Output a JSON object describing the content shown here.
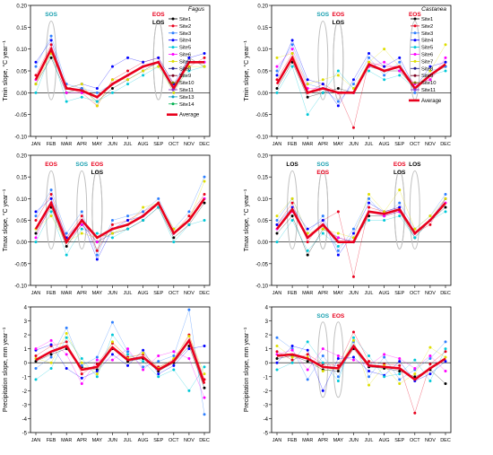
{
  "months": [
    "JAN",
    "FEB",
    "MAR",
    "APR",
    "MAY",
    "JUN",
    "JUL",
    "AUG",
    "SEP",
    "OCT",
    "NOV",
    "DEC"
  ],
  "legend_fagus": {
    "title": "Fagus",
    "sites": [
      "Site1",
      "Site2",
      "Site3",
      "Site4",
      "Site5",
      "Site6",
      "Site7",
      "Site8",
      "Site9",
      "Site10",
      "Site11",
      "Site13",
      "Site14"
    ],
    "average_label": "Average"
  },
  "legend_castanea": {
    "title": "Castanea",
    "sites": [
      "Site1",
      "Site2",
      "Site3",
      "Site4",
      "Site5",
      "Site6",
      "Site7",
      "Site8",
      "Site9",
      "Site10",
      "Site11"
    ],
    "average_label": "Average"
  },
  "colors": {
    "average": "#e8001c",
    "sites": [
      "#000000",
      "#e8001c",
      "#2e7fff",
      "#0000ff",
      "#00c8d8",
      "#ff00ff",
      "#dede00",
      "#1a1a8a",
      "#7a0020",
      "#7a7a00",
      "#8b2bc8",
      "#0aa0c0",
      "#00b050",
      "#8a2be2"
    ],
    "ellipse": "#c0c0c0",
    "sos": "#1aa0b0",
    "eos": "#e8001c",
    "los": "#000000"
  },
  "chart_data": [
    {
      "type": "line",
      "panel": "tmin-fagus",
      "ylabel": "Tmin slope, °C year⁻¹",
      "ylim": [
        -0.1,
        0.2
      ],
      "yticks": [
        "-0.10",
        "-0.05",
        "0.00",
        "0.05",
        "0.10",
        "0.15",
        "0.20"
      ],
      "annotations": [
        {
          "text": "SOS",
          "month": 2,
          "kind": "sos"
        },
        {
          "text": "EOS",
          "month": 9,
          "kind": "eos"
        },
        {
          "text": "LOS",
          "month": 9,
          "kind": "los"
        }
      ],
      "average": [
        0.03,
        0.1,
        0.01,
        0.005,
        -0.01,
        0.02,
        0.04,
        0.06,
        0.07,
        0.01,
        0.07,
        0.07
      ],
      "series": [
        {
          "name": "Site1",
          "values": [
            0.02,
            0.08,
            0.0,
            0.01,
            -0.02,
            0.01,
            0.03,
            0.05,
            0.07,
            0.01,
            0.08,
            0.06
          ]
        },
        {
          "name": "Site2",
          "values": [
            0.04,
            0.11,
            0.01,
            0.0,
            -0.03,
            0.03,
            0.05,
            0.07,
            0.08,
            0.02,
            0.06,
            0.08
          ]
        },
        {
          "name": "Site3",
          "values": [
            0.06,
            0.13,
            0.02,
            0.01,
            0.0,
            0.02,
            0.04,
            0.06,
            0.07,
            0.0,
            0.07,
            0.07
          ]
        },
        {
          "name": "Site4",
          "values": [
            0.07,
            0.12,
            0.01,
            0.02,
            0.01,
            0.06,
            0.08,
            0.07,
            0.08,
            0.02,
            0.08,
            0.09
          ]
        },
        {
          "name": "Site5",
          "values": [
            0.0,
            0.09,
            -0.02,
            -0.01,
            -0.02,
            0.0,
            0.02,
            0.04,
            0.06,
            0.01,
            0.05,
            0.06
          ]
        },
        {
          "name": "Site6",
          "values": [
            0.03,
            0.1,
            0.0,
            0.0,
            -0.01,
            0.02,
            0.04,
            0.06,
            0.07,
            0.01,
            0.07,
            0.07
          ]
        },
        {
          "name": "Site7",
          "values": [
            0.02,
            0.09,
            0.01,
            0.02,
            -0.03,
            0.03,
            0.03,
            0.05,
            0.06,
            0.0,
            0.06,
            0.06
          ]
        }
      ]
    },
    {
      "type": "line",
      "panel": "tmin-castanea",
      "ylabel": "Tmin slope, °C year⁻¹",
      "ylim": [
        -0.1,
        0.2
      ],
      "yticks": [
        "-0.10",
        "-0.05",
        "0.00",
        "0.05",
        "0.10",
        "0.15",
        "0.20"
      ],
      "annotations": [
        {
          "text": "SOS",
          "month": 4,
          "kind": "sos"
        },
        {
          "text": "EOS",
          "month": 5,
          "kind": "eos"
        },
        {
          "text": "LOS",
          "month": 5,
          "kind": "los"
        },
        {
          "text": "EOS",
          "month": 10,
          "kind": "eos"
        }
      ],
      "average": [
        0.02,
        0.08,
        0.0,
        0.01,
        0.0,
        0.0,
        0.065,
        0.05,
        0.06,
        0.01,
        0.04,
        0.065
      ],
      "series": [
        {
          "name": "Site1",
          "values": [
            0.01,
            0.07,
            -0.01,
            0.0,
            0.01,
            0.0,
            0.06,
            0.05,
            0.05,
            0.01,
            0.04,
            0.06
          ]
        },
        {
          "name": "Site2",
          "values": [
            0.03,
            0.09,
            0.0,
            0.02,
            0.0,
            -0.08,
            0.07,
            0.06,
            0.06,
            0.02,
            0.03,
            0.07
          ]
        },
        {
          "name": "Site3",
          "values": [
            0.05,
            0.11,
            0.02,
            0.01,
            -0.02,
            0.02,
            0.08,
            0.04,
            0.07,
            0.0,
            0.05,
            0.06
          ]
        },
        {
          "name": "Site4",
          "values": [
            0.04,
            0.12,
            0.03,
            0.02,
            -0.03,
            0.03,
            0.09,
            0.06,
            0.08,
            0.01,
            0.06,
            0.07
          ]
        },
        {
          "name": "Site5",
          "values": [
            0.0,
            0.06,
            -0.05,
            0.0,
            0.05,
            0.01,
            0.05,
            0.03,
            0.04,
            0.01,
            0.04,
            0.05
          ]
        },
        {
          "name": "Site6",
          "values": [
            0.06,
            0.1,
            0.01,
            0.01,
            0.0,
            0.0,
            0.06,
            0.07,
            0.05,
            0.02,
            0.03,
            0.08
          ]
        },
        {
          "name": "Site7",
          "values": [
            0.08,
            0.09,
            0.02,
            0.03,
            0.04,
            0.01,
            0.07,
            0.1,
            0.06,
            0.01,
            0.05,
            0.11
          ]
        }
      ]
    },
    {
      "type": "line",
      "panel": "tmax-fagus",
      "ylabel": "Tmax slope, °C year⁻¹",
      "ylim": [
        -0.1,
        0.2
      ],
      "yticks": [
        "-0.10",
        "-0.05",
        "0.00",
        "0.05",
        "0.10",
        "0.15",
        "0.20"
      ],
      "annotations": [
        {
          "text": "EOS",
          "month": 2,
          "kind": "eos"
        },
        {
          "text": "SOS",
          "month": 4,
          "kind": "sos"
        },
        {
          "text": "EOS",
          "month": 5,
          "kind": "eos"
        },
        {
          "text": "LOS",
          "month": 5,
          "kind": "los"
        }
      ],
      "average": [
        0.03,
        0.09,
        0.0,
        0.05,
        0.01,
        0.03,
        0.04,
        0.06,
        0.09,
        0.02,
        0.05,
        0.1
      ],
      "series": [
        {
          "name": "Site1",
          "values": [
            0.02,
            0.08,
            -0.01,
            0.04,
            0.0,
            0.02,
            0.03,
            0.05,
            0.08,
            0.01,
            0.04,
            0.09
          ]
        },
        {
          "name": "Site2",
          "values": [
            0.05,
            0.11,
            0.01,
            0.06,
            -0.02,
            0.04,
            0.05,
            0.07,
            0.09,
            0.02,
            0.06,
            0.11
          ]
        },
        {
          "name": "Site3",
          "values": [
            0.06,
            0.12,
            0.02,
            0.07,
            -0.03,
            0.05,
            0.06,
            0.07,
            0.1,
            0.03,
            0.07,
            0.15
          ]
        },
        {
          "name": "Site4",
          "values": [
            0.07,
            0.1,
            0.01,
            0.05,
            -0.04,
            0.03,
            0.05,
            0.06,
            0.09,
            0.02,
            0.05,
            0.1
          ]
        },
        {
          "name": "Site5",
          "values": [
            0.0,
            0.07,
            -0.03,
            0.03,
            0.02,
            0.01,
            0.03,
            0.05,
            0.08,
            0.0,
            0.04,
            0.05
          ]
        },
        {
          "name": "Site6",
          "values": [
            0.01,
            0.09,
            0.0,
            0.04,
            0.0,
            0.03,
            0.04,
            0.06,
            0.09,
            0.02,
            0.05,
            0.1
          ]
        },
        {
          "name": "Site7",
          "values": [
            0.03,
            0.06,
            0.0,
            0.02,
            0.01,
            0.02,
            0.04,
            0.08,
            0.09,
            0.03,
            0.05,
            0.14
          ]
        }
      ]
    },
    {
      "type": "line",
      "panel": "tmax-castanea",
      "ylabel": "Tmax slope, °C year⁻¹",
      "ylim": [
        -0.1,
        0.2
      ],
      "yticks": [
        "-0.10",
        "-0.05",
        "0.00",
        "0.05",
        "0.10",
        "0.15",
        "0.20"
      ],
      "annotations": [
        {
          "text": "LOS",
          "month": 2,
          "kind": "los"
        },
        {
          "text": "SOS",
          "month": 4,
          "kind": "sos"
        },
        {
          "text": "EOS",
          "month": 4,
          "kind": "eos"
        },
        {
          "text": "EOS",
          "month": 9,
          "kind": "eos"
        },
        {
          "text": "LOS",
          "month": 9,
          "kind": "los"
        },
        {
          "text": "LOS",
          "month": 10,
          "kind": "los"
        }
      ],
      "average": [
        0.03,
        0.075,
        0.01,
        0.04,
        0.0,
        0.0,
        0.07,
        0.065,
        0.075,
        0.02,
        0.05,
        0.09
      ],
      "series": [
        {
          "name": "Site1",
          "values": [
            0.02,
            0.06,
            -0.03,
            0.03,
            0.01,
            0.0,
            0.06,
            0.06,
            0.07,
            0.01,
            0.05,
            0.08
          ]
        },
        {
          "name": "Site2",
          "values": [
            0.04,
            0.09,
            0.0,
            0.05,
            0.07,
            -0.08,
            0.08,
            0.07,
            0.08,
            0.02,
            0.04,
            0.1
          ]
        },
        {
          "name": "Site3",
          "values": [
            0.05,
            0.1,
            0.02,
            0.06,
            -0.02,
            0.03,
            0.1,
            0.06,
            0.09,
            0.03,
            0.06,
            0.11
          ]
        },
        {
          "name": "Site4",
          "values": [
            0.04,
            0.08,
            0.03,
            0.05,
            -0.03,
            0.02,
            0.09,
            0.07,
            0.08,
            0.02,
            0.05,
            0.1
          ]
        },
        {
          "name": "Site5",
          "values": [
            0.0,
            0.05,
            -0.02,
            0.02,
            -0.01,
            0.01,
            0.05,
            0.05,
            0.06,
            0.01,
            0.05,
            0.07
          ]
        },
        {
          "name": "Site6",
          "values": [
            0.03,
            0.07,
            0.01,
            0.04,
            0.01,
            0.0,
            0.07,
            0.06,
            0.07,
            0.02,
            0.05,
            0.09
          ]
        },
        {
          "name": "Site7",
          "values": [
            0.06,
            0.1,
            0.02,
            0.03,
            0.02,
            0.01,
            0.11,
            0.07,
            0.12,
            0.03,
            0.06,
            0.1
          ]
        }
      ]
    },
    {
      "type": "line",
      "panel": "prec-fagus",
      "ylabel": "Precipitation slope, mm year⁻¹",
      "ylim": [
        -5,
        4
      ],
      "yticks": [
        "-5",
        "-4",
        "-3",
        "-2",
        "-1",
        "0",
        "1",
        "2",
        "3",
        "4"
      ],
      "annotations": [],
      "average": [
        0.2,
        0.8,
        1.2,
        -0.5,
        -0.3,
        1.1,
        0.2,
        0.4,
        -0.5,
        0.1,
        1.6,
        -1.5
      ],
      "series": [
        {
          "name": "Site1",
          "values": [
            0.1,
            0.6,
            1.0,
            -0.3,
            -0.5,
            1.0,
            0.1,
            0.3,
            -0.6,
            0.0,
            1.2,
            -1.8
          ]
        },
        {
          "name": "Site2",
          "values": [
            0.5,
            1.2,
            1.5,
            -0.8,
            -0.1,
            1.4,
            0.4,
            0.6,
            -0.3,
            0.2,
            2.0,
            -1.2
          ]
        },
        {
          "name": "Site3",
          "values": [
            -0.4,
            0.4,
            2.5,
            -0.2,
            0.4,
            2.9,
            0.8,
            -0.3,
            0.1,
            0.5,
            3.8,
            -3.7
          ]
        },
        {
          "name": "Site4",
          "values": [
            0.9,
            1.3,
            -0.4,
            -1.1,
            -0.6,
            0.6,
            -0.2,
            0.9,
            -0.8,
            -0.2,
            1.0,
            1.2
          ]
        },
        {
          "name": "Site5",
          "values": [
            -1.2,
            -0.4,
            1.8,
            0.3,
            -1.0,
            2.0,
            0.6,
            0.1,
            -1.0,
            -0.5,
            -2.0,
            -0.3
          ]
        },
        {
          "name": "Site6",
          "values": [
            1.0,
            1.6,
            0.6,
            -1.5,
            0.2,
            0.2,
            1.0,
            -0.5,
            0.5,
            0.8,
            0.3,
            -2.5
          ]
        },
        {
          "name": "Site7",
          "values": [
            0.3,
            0.0,
            2.1,
            0.0,
            -0.8,
            1.5,
            0.3,
            0.7,
            -0.4,
            0.3,
            1.9,
            -0.8
          ]
        }
      ]
    },
    {
      "type": "line",
      "panel": "prec-castanea",
      "ylabel": "Precipitation slope, mm year⁻¹",
      "ylim": [
        -5,
        4
      ],
      "yticks": [
        "-5",
        "-4",
        "-3",
        "-2",
        "-1",
        "0",
        "1",
        "2",
        "3",
        "4"
      ],
      "annotations": [
        {
          "text": "SOS",
          "month": 4,
          "kind": "sos"
        },
        {
          "text": "EOS",
          "month": 5,
          "kind": "eos"
        }
      ],
      "average": [
        0.5,
        0.6,
        0.3,
        -0.3,
        -0.4,
        1.2,
        -0.2,
        -0.3,
        -0.4,
        -1.2,
        -0.4,
        0.3
      ],
      "series": [
        {
          "name": "Site1",
          "values": [
            0.3,
            0.5,
            0.1,
            -0.5,
            -0.6,
            1.0,
            -0.3,
            -0.4,
            -0.6,
            -1.0,
            -0.5,
            -1.5
          ]
        },
        {
          "name": "Site2",
          "values": [
            0.8,
            0.2,
            0.6,
            -0.1,
            -0.2,
            2.2,
            0.1,
            -0.1,
            -0.2,
            -3.6,
            -0.1,
            0.8
          ]
        },
        {
          "name": "Site3",
          "values": [
            1.8,
            1.0,
            -1.2,
            0.5,
            -1.0,
            1.5,
            -1.0,
            0.4,
            -1.2,
            -0.5,
            0.3,
            1.5
          ]
        },
        {
          "name": "Site4",
          "values": [
            0.0,
            1.2,
            0.9,
            -2.0,
            0.3,
            0.4,
            -0.6,
            -0.9,
            0.1,
            -1.3,
            -0.8,
            0.1
          ]
        },
        {
          "name": "Site5",
          "values": [
            -0.5,
            0.0,
            1.5,
            0.0,
            -1.3,
            1.8,
            0.5,
            -1.0,
            -0.8,
            0.2,
            -1.3,
            1.0
          ]
        },
        {
          "name": "Site6",
          "values": [
            0.6,
            0.9,
            -0.5,
            1.0,
            0.5,
            0.2,
            -0.2,
            0.6,
            0.3,
            -0.4,
            0.5,
            -0.6
          ]
        },
        {
          "name": "Site7",
          "values": [
            1.2,
            0.4,
            0.4,
            -0.6,
            -0.4,
            1.6,
            -1.6,
            -0.2,
            -1.5,
            -0.8,
            1.1,
            0.4
          ]
        }
      ]
    }
  ]
}
